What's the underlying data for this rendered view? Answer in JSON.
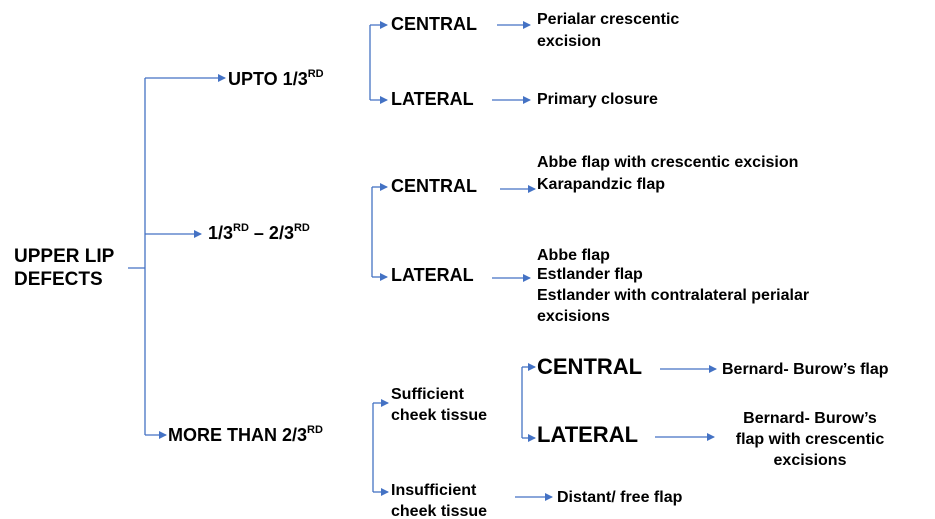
{
  "root": {
    "lines": [
      "UPPER LIP",
      "DEFECTS"
    ]
  },
  "branches": [
    {
      "label": [
        {
          "text": "UPTO 1/3"
        },
        {
          "sup": "RD"
        }
      ],
      "children": [
        {
          "label": "CENTRAL",
          "result": [
            "Perialar crescentic",
            "excision"
          ]
        },
        {
          "label": "LATERAL",
          "result": [
            "Primary closure"
          ]
        }
      ]
    },
    {
      "label": [
        {
          "text": "1/3"
        },
        {
          "sup": "RD"
        },
        {
          "text": " – 2/3"
        },
        {
          "sup": "RD"
        }
      ],
      "children": [
        {
          "label": "CENTRAL",
          "result": [
            "Abbe flap with crescentic excision",
            "Karapandzic flap"
          ]
        },
        {
          "label": "LATERAL",
          "result": [
            "Abbe flap",
            "Estlander flap",
            "Estlander with contralateral perialar",
            "excisions"
          ]
        }
      ]
    },
    {
      "label": [
        {
          "text": "MORE THAN 2/3"
        },
        {
          "sup": "RD"
        }
      ],
      "children": [
        {
          "label": [
            "Sufficient",
            "cheek tissue"
          ],
          "children": [
            {
              "label": "CENTRAL",
              "result": [
                "Bernard- Burow’s flap"
              ]
            },
            {
              "label": "LATERAL",
              "result": [
                "Bernard- Burow’s",
                "flap with crescentic",
                "excisions"
              ]
            }
          ]
        },
        {
          "label": [
            "Insufficient",
            "cheek tissue"
          ],
          "result": [
            "Distant/ free flap"
          ]
        }
      ]
    }
  ]
}
